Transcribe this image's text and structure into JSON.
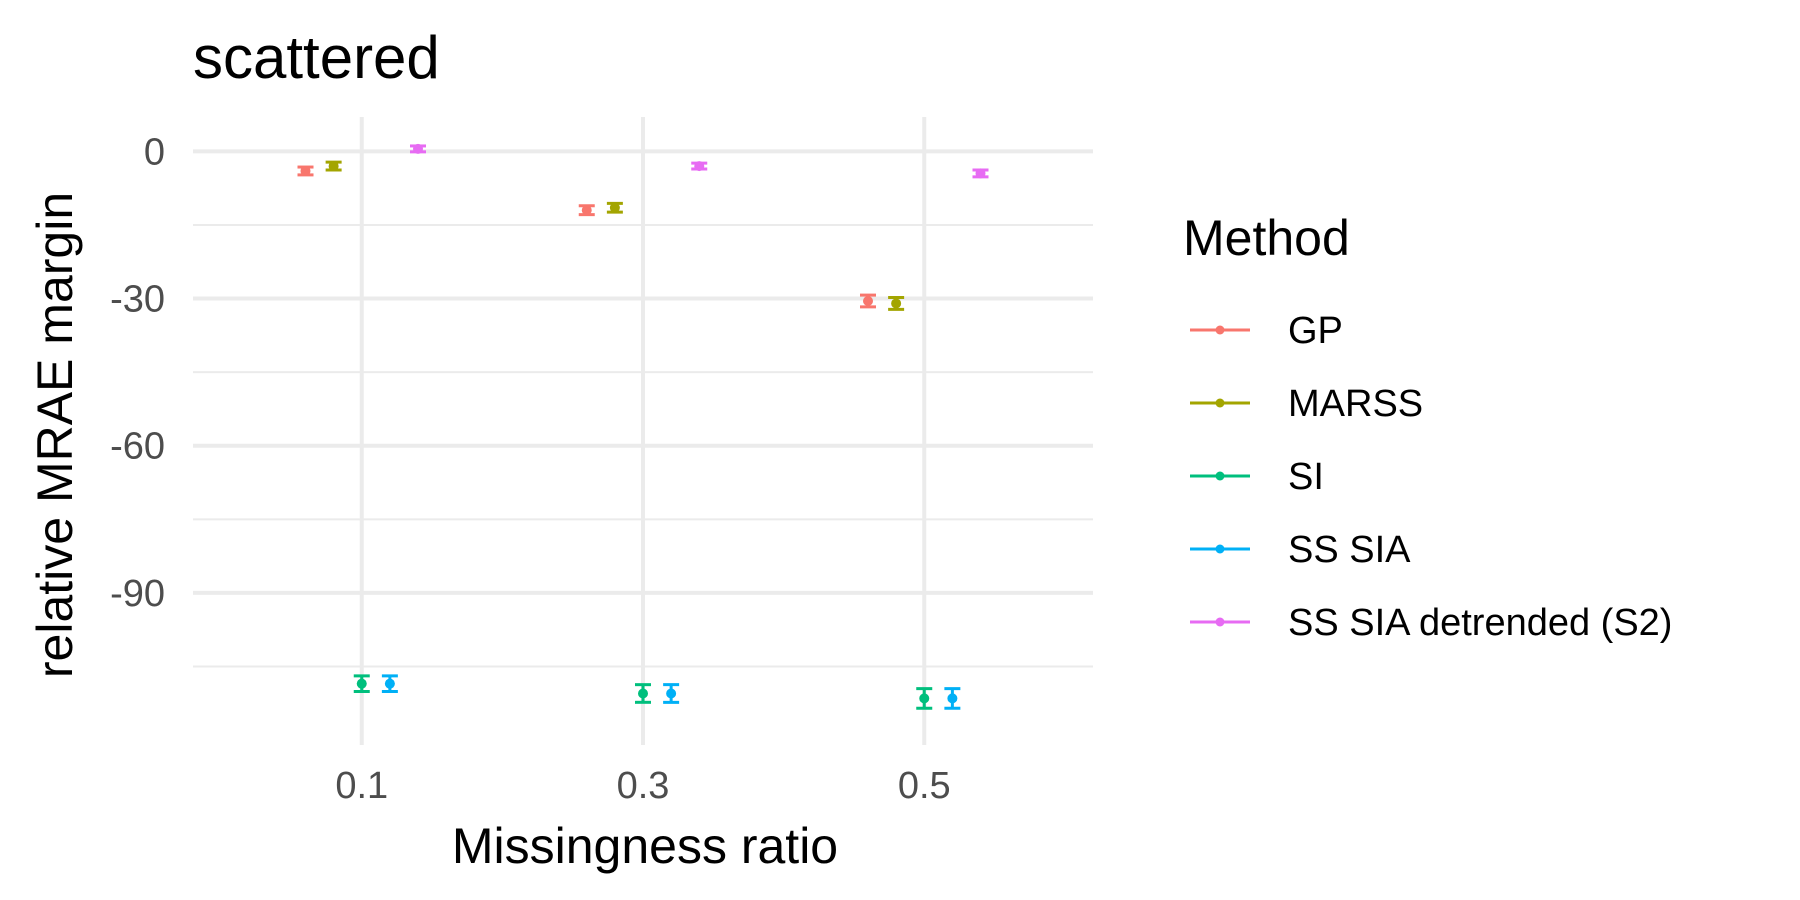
{
  "chart_data": {
    "type": "scatter",
    "title": "scattered",
    "xlabel": "Missingness ratio",
    "ylabel": "relative MRAE margin",
    "x_ticks": [
      "0.1",
      "0.3",
      "0.5"
    ],
    "y_ticks": [
      "0",
      "-30",
      "-60",
      "-90"
    ],
    "x": [
      0.1,
      0.3,
      0.5
    ],
    "xlim": [
      -0.02,
      0.62
    ],
    "ylim": [
      -121,
      7
    ],
    "grid": true,
    "legend": {
      "title": "Method",
      "position": "right"
    },
    "series": [
      {
        "name": "GP",
        "color": "#F8766D",
        "offset": -0.04,
        "values": [
          -4,
          -12,
          -30.5
        ],
        "errors": [
          0.8,
          0.9,
          1.2
        ]
      },
      {
        "name": "MARSS",
        "color": "#A3A500",
        "offset": -0.02,
        "values": [
          -3,
          -11.5,
          -31
        ],
        "errors": [
          0.8,
          0.9,
          1.2
        ]
      },
      {
        "name": "SI",
        "color": "#00BF7D",
        "offset": 0.0,
        "values": [
          -108.5,
          -110.5,
          -111.5
        ],
        "errors": [
          1.6,
          1.8,
          2.0
        ]
      },
      {
        "name": "SS SIA",
        "color": "#00B0F6",
        "offset": 0.02,
        "values": [
          -108.5,
          -110.5,
          -111.5
        ],
        "errors": [
          1.6,
          1.8,
          2.0
        ]
      },
      {
        "name": "SS SIA detrended (S2)",
        "color": "#E76BF3",
        "offset": 0.04,
        "values": [
          0.5,
          -3,
          -4.5
        ],
        "errors": [
          0.6,
          0.6,
          0.7
        ]
      }
    ]
  }
}
